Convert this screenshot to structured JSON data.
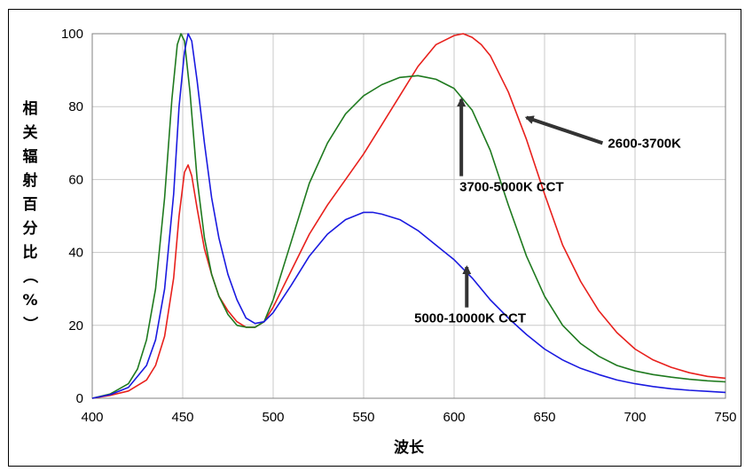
{
  "chart_data": {
    "type": "line",
    "title": "",
    "xlabel": "波长",
    "ylabel": "相关辐射百分比（%）",
    "xlim": [
      400,
      750
    ],
    "ylim": [
      0,
      100
    ],
    "xticks": [
      400,
      450,
      500,
      550,
      600,
      650,
      700,
      750
    ],
    "yticks": [
      0,
      20,
      40,
      60,
      80,
      100
    ],
    "grid": true,
    "series": [
      {
        "color": "#e8201c",
        "x": [
          400,
          410,
          420,
          430,
          435,
          440,
          445,
          448,
          451,
          453,
          455,
          458,
          462,
          466,
          470,
          475,
          480,
          485,
          490,
          495,
          500,
          510,
          520,
          530,
          540,
          550,
          560,
          570,
          580,
          590,
          600,
          605,
          610,
          615,
          620,
          630,
          640,
          650,
          660,
          670,
          680,
          690,
          700,
          710,
          720,
          730,
          740,
          750
        ],
        "y": [
          0,
          0.8,
          2,
          5,
          9,
          17,
          33,
          50,
          62,
          64,
          61,
          52,
          41,
          34,
          28,
          24,
          21,
          19.5,
          19.5,
          21,
          25,
          35,
          45,
          53,
          60,
          67,
          75,
          83,
          91,
          97,
          99.5,
          100,
          99,
          97,
          94,
          84,
          71,
          56,
          42,
          32,
          24,
          18,
          13.5,
          10.5,
          8.5,
          7,
          6,
          5.5
        ]
      },
      {
        "color": "#1f7a1f",
        "x": [
          400,
          410,
          420,
          425,
          430,
          435,
          440,
          444,
          447,
          449,
          451,
          454,
          458,
          462,
          466,
          470,
          475,
          480,
          485,
          490,
          495,
          500,
          510,
          520,
          530,
          540,
          550,
          560,
          570,
          580,
          585,
          590,
          600,
          610,
          620,
          630,
          640,
          650,
          660,
          670,
          680,
          690,
          700,
          710,
          720,
          730,
          740,
          750
        ],
        "y": [
          0,
          1.2,
          4,
          8,
          16,
          30,
          55,
          82,
          97,
          100,
          98,
          84,
          60,
          44,
          34,
          28,
          23,
          20,
          19.5,
          19.5,
          21,
          27,
          43,
          59,
          70,
          78,
          83,
          86,
          88,
          88.5,
          88,
          87.5,
          85,
          79,
          68,
          53,
          39,
          28,
          20,
          15,
          11.5,
          9,
          7.5,
          6.5,
          5.8,
          5.2,
          4.8,
          4.5
        ]
      },
      {
        "color": "#1a1ae0",
        "x": [
          400,
          410,
          420,
          430,
          435,
          440,
          445,
          448,
          451,
          453,
          455,
          458,
          462,
          466,
          470,
          475,
          480,
          485,
          490,
          495,
          500,
          510,
          520,
          530,
          540,
          550,
          555,
          560,
          570,
          580,
          590,
          600,
          610,
          620,
          630,
          640,
          650,
          660,
          670,
          680,
          690,
          700,
          710,
          720,
          730,
          740,
          750
        ],
        "y": [
          0,
          1,
          3,
          9,
          16,
          30,
          56,
          80,
          95,
          100,
          98,
          87,
          70,
          55,
          44,
          34,
          27,
          22,
          20.5,
          21,
          23.5,
          31,
          39,
          45,
          49,
          51,
          51,
          50.5,
          49,
          46,
          42,
          38,
          33,
          27,
          22,
          17.5,
          13.5,
          10.5,
          8.2,
          6.5,
          5,
          4,
          3.2,
          2.6,
          2.2,
          1.9,
          1.6
        ]
      }
    ],
    "annotations": [
      {
        "text": "2600-3700K",
        "x": 685,
        "y": 70,
        "arrow_to": [
          640,
          77
        ]
      },
      {
        "text": "3700-5000K  CCT",
        "x": 603,
        "y": 58,
        "arrow_to": [
          604,
          82
        ]
      },
      {
        "text": "5000-10000K  CCT",
        "x": 578,
        "y": 22,
        "arrow_to": [
          607,
          36
        ]
      }
    ]
  }
}
